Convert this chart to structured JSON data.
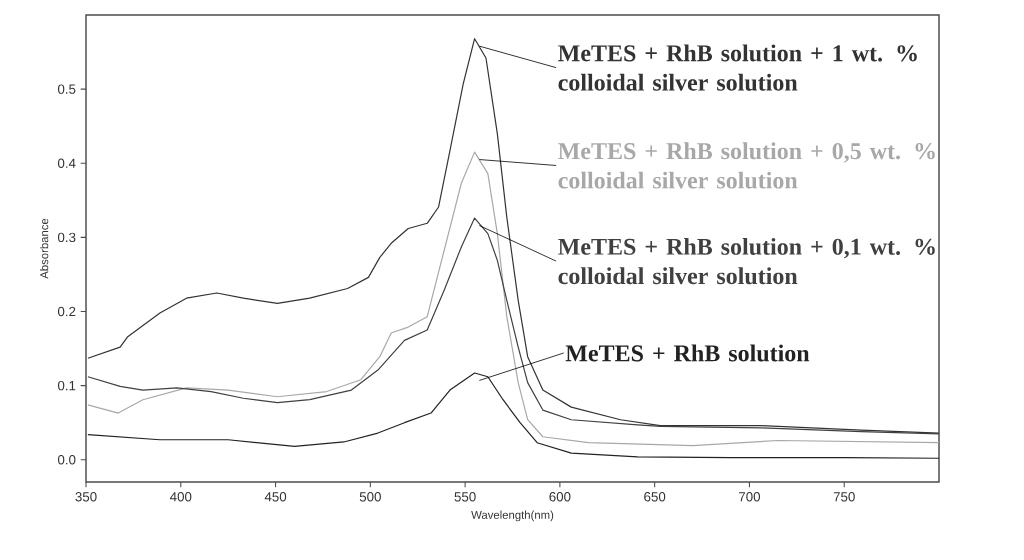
{
  "chart_data": {
    "type": "line",
    "xlabel": "Wavelength(nm)",
    "ylabel": "Absorbance",
    "xlim": [
      350,
      800
    ],
    "ylim": [
      -0.03,
      0.6
    ],
    "xticks": [
      350,
      400,
      450,
      500,
      550,
      600,
      650,
      700,
      750
    ],
    "yticks": [
      {
        "value": 0,
        "label": "0.0"
      },
      {
        "value": 0.1,
        "label": "0.1"
      },
      {
        "value": 0.2,
        "label": "0.2"
      },
      {
        "value": 0.3,
        "label": "0.3"
      },
      {
        "value": 0.4,
        "label": "0.4"
      },
      {
        "value": 0.5,
        "label": "0.5"
      }
    ],
    "series": [
      {
        "name": "MeTES + RhB solution + 1 wt. % colloidal silver solution",
        "color": "#333333",
        "x": [
          351,
          368,
          372,
          389,
          403,
          419,
          433,
          451,
          468,
          488,
          499,
          505,
          511,
          520,
          530,
          536,
          542,
          549,
          555,
          561,
          567,
          572,
          578,
          583,
          591,
          606,
          632,
          653,
          706,
          759,
          800
        ],
        "values": [
          0.137,
          0.152,
          0.166,
          0.198,
          0.218,
          0.225,
          0.218,
          0.211,
          0.218,
          0.231,
          0.246,
          0.273,
          0.292,
          0.312,
          0.319,
          0.341,
          0.417,
          0.507,
          0.568,
          0.542,
          0.44,
          0.327,
          0.215,
          0.139,
          0.094,
          0.071,
          0.054,
          0.046,
          0.046,
          0.04,
          0.036
        ]
      },
      {
        "name": "MeTES + RhB solution + 0,5 wt. % colloidal silver solution",
        "color": "#a8a8a8",
        "x": [
          351,
          367,
          380,
          403,
          425,
          451,
          477,
          495,
          505,
          511,
          520,
          530,
          539,
          548,
          555,
          562,
          567,
          572,
          578,
          583,
          591,
          615,
          670,
          715,
          800
        ],
        "values": [
          0.074,
          0.063,
          0.081,
          0.097,
          0.094,
          0.085,
          0.092,
          0.108,
          0.139,
          0.171,
          0.179,
          0.193,
          0.283,
          0.373,
          0.415,
          0.386,
          0.305,
          0.193,
          0.104,
          0.054,
          0.031,
          0.023,
          0.019,
          0.026,
          0.023
        ]
      },
      {
        "name": "MeTES + RhB solution + 0,1 wt. % colloidal silver solution",
        "color": "#404040",
        "x": [
          351,
          368,
          380,
          398,
          416,
          433,
          451,
          468,
          490,
          504,
          518,
          530,
          539,
          548,
          555,
          562,
          567,
          572,
          578,
          583,
          591,
          606,
          641,
          653,
          706,
          759,
          800
        ],
        "values": [
          0.112,
          0.099,
          0.094,
          0.097,
          0.092,
          0.083,
          0.077,
          0.081,
          0.094,
          0.121,
          0.161,
          0.175,
          0.229,
          0.287,
          0.326,
          0.305,
          0.269,
          0.215,
          0.152,
          0.104,
          0.067,
          0.054,
          0.047,
          0.045,
          0.043,
          0.038,
          0.035
        ]
      },
      {
        "name": "MeTES + RhB solution",
        "color": "#222222",
        "x": [
          351,
          389,
          425,
          460,
          486,
          504,
          518,
          532,
          542,
          555,
          562,
          570,
          579,
          588,
          606,
          641,
          690,
          750,
          800
        ],
        "values": [
          0.034,
          0.027,
          0.027,
          0.018,
          0.024,
          0.036,
          0.05,
          0.063,
          0.094,
          0.117,
          0.112,
          0.081,
          0.05,
          0.023,
          0.009,
          0.004,
          0.003,
          0.003,
          0.002
        ]
      }
    ]
  }
}
